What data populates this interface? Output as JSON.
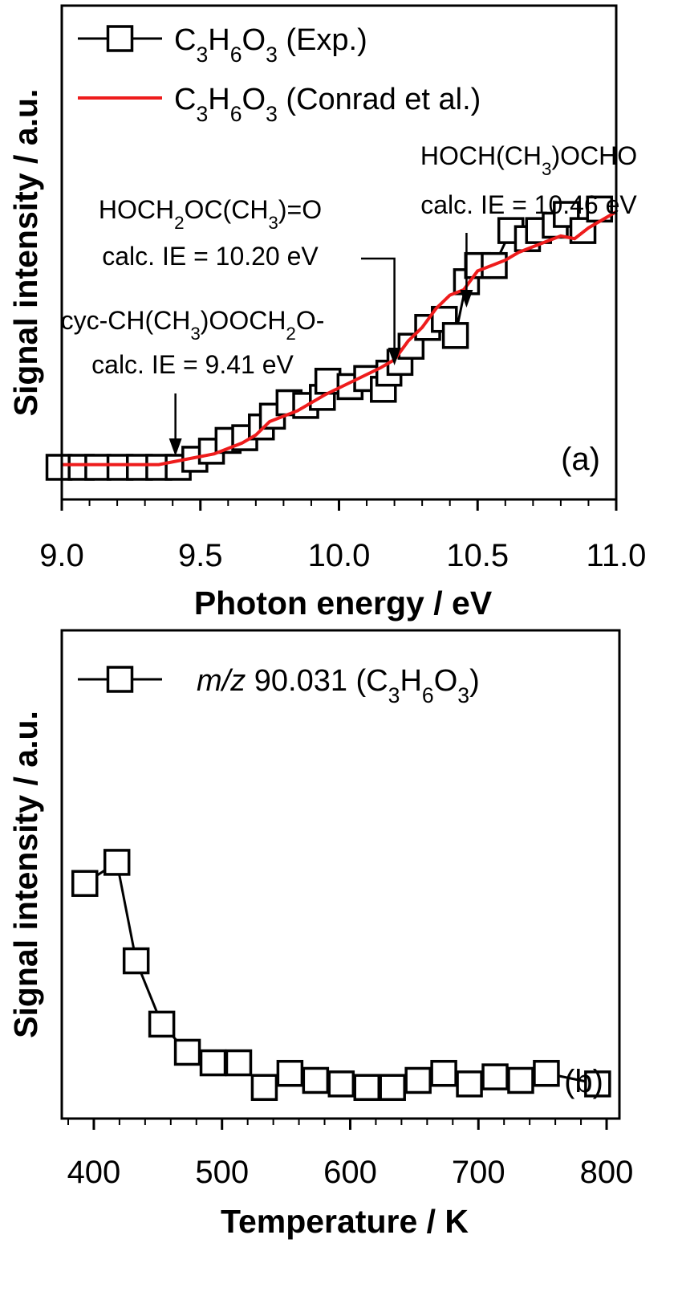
{
  "chart_data": [
    {
      "type": "line",
      "panel_label": "(a)",
      "xlabel": "Photon energy / eV",
      "ylabel": "Signal intensity / a.u.",
      "xlim": [
        9.0,
        11.0
      ],
      "ylim": [
        0,
        1
      ],
      "x_ticks": [
        "9.0",
        "9.5",
        "10.0",
        "10.5",
        "11.0"
      ],
      "legend_position": "top-left",
      "series": [
        {
          "name": "C3H6O3 (Exp.)",
          "legend_main": "C",
          "legend_parts": [
            [
              "C",
              ""
            ],
            [
              "H",
              "3"
            ],
            [
              "O",
              "6"
            ],
            [
              " (Exp.)",
              "3"
            ]
          ],
          "style": "markers-line",
          "color": "#000000",
          "x": [
            8.99,
            9.07,
            9.13,
            9.21,
            9.28,
            9.35,
            9.42,
            9.48,
            9.54,
            9.6,
            9.66,
            9.72,
            9.76,
            9.82,
            9.88,
            9.94,
            9.96,
            10.04,
            10.1,
            10.16,
            10.18,
            10.22,
            10.26,
            10.32,
            10.38,
            10.42,
            10.46,
            10.5,
            10.56,
            10.62,
            10.68,
            10.72,
            10.78,
            10.82,
            10.88,
            10.94
          ],
          "y": [
            0.03,
            0.03,
            0.03,
            0.03,
            0.03,
            0.03,
            0.03,
            0.06,
            0.09,
            0.13,
            0.14,
            0.18,
            0.22,
            0.27,
            0.26,
            0.29,
            0.35,
            0.33,
            0.36,
            0.32,
            0.38,
            0.42,
            0.48,
            0.55,
            0.58,
            0.52,
            0.72,
            0.78,
            0.78,
            0.91,
            0.88,
            0.91,
            0.93,
            0.97,
            0.91,
            0.99
          ]
        },
        {
          "name": "C3H6O3 (Conrad et al.)",
          "legend_parts": [
            [
              "C",
              ""
            ],
            [
              "H",
              "3"
            ],
            [
              "O",
              "6"
            ],
            [
              " (Conrad et al.)",
              "3"
            ]
          ],
          "style": "line",
          "color": "#ee1c1c",
          "x": [
            9.0,
            9.35,
            9.45,
            9.55,
            9.65,
            9.7,
            9.75,
            9.85,
            9.95,
            10.05,
            10.15,
            10.2,
            10.25,
            10.3,
            10.35,
            10.4,
            10.45,
            10.5,
            10.55,
            10.6,
            10.65,
            10.7,
            10.75,
            10.8,
            10.85,
            10.9,
            10.95,
            11.0
          ],
          "y": [
            0.04,
            0.04,
            0.06,
            0.08,
            0.12,
            0.15,
            0.2,
            0.24,
            0.3,
            0.35,
            0.4,
            0.43,
            0.5,
            0.55,
            0.62,
            0.67,
            0.69,
            0.76,
            0.78,
            0.8,
            0.83,
            0.85,
            0.87,
            0.89,
            0.88,
            0.92,
            0.95,
            0.98
          ]
        }
      ],
      "annotations": [
        {
          "line1": "cyc-CH(CH3)OOCH2O-",
          "line1_parts": [
            [
              "cyc-CH(CH",
              ""
            ],
            [
              ")OOCH",
              "3"
            ],
            [
              "O-",
              "2"
            ]
          ],
          "line2": "calc. IE = 9.41 eV",
          "x": 9.41
        },
        {
          "line1": "HOCH2OC(CH3)=O",
          "line1_parts": [
            [
              "HOCH",
              ""
            ],
            [
              "OC(CH",
              "2"
            ],
            [
              ")=O",
              "3"
            ]
          ],
          "line2": "calc. IE = 10.20 eV",
          "x": 10.2
        },
        {
          "line1": "HOCH(CH3)OCHO",
          "line1_parts": [
            [
              "HOCH(CH",
              ""
            ],
            [
              ")OCHO",
              "3"
            ]
          ],
          "line2": "calc. IE = 10.46 eV",
          "x": 10.46
        }
      ]
    },
    {
      "type": "line",
      "panel_label": "(b)",
      "xlabel": "Temperature / K",
      "ylabel": "Signal intensity / a.u.",
      "xlim": [
        375,
        810
      ],
      "ylim": [
        0,
        1
      ],
      "x_ticks": [
        "400",
        "500",
        "600",
        "700",
        "800"
      ],
      "legend_position": "top-left",
      "series": [
        {
          "name": "m/z 90.031 (C3H6O3)",
          "legend_italic": "m/z",
          "legend_parts": [
            [
              " 90.031 (C",
              ""
            ],
            [
              "H",
              "3"
            ],
            [
              "O",
              "6"
            ],
            [
              ")",
              "3"
            ]
          ],
          "style": "markers-line",
          "color": "#000000",
          "x": [
            393,
            418,
            433,
            453,
            473,
            493,
            513,
            533,
            553,
            573,
            593,
            613,
            633,
            653,
            673,
            693,
            713,
            733,
            753,
            793
          ],
          "y": [
            0.6,
            0.66,
            0.38,
            0.2,
            0.12,
            0.09,
            0.09,
            0.02,
            0.06,
            0.04,
            0.03,
            0.02,
            0.02,
            0.04,
            0.06,
            0.03,
            0.05,
            0.04,
            0.06,
            0.03
          ]
        }
      ]
    }
  ]
}
